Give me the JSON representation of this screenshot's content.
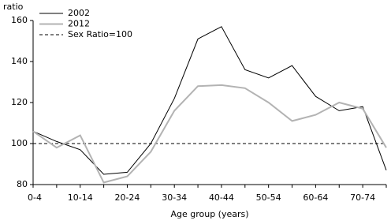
{
  "chart_data": {
    "type": "line",
    "y_axis_label": "ratio",
    "x_axis_label": "Age group (years)",
    "categories": [
      "0-4",
      null,
      "10-14",
      null,
      "20-24",
      null,
      "30-34",
      null,
      "40-44",
      null,
      "50-54",
      null,
      "60-64",
      null,
      "70-74",
      null
    ],
    "series": [
      {
        "name": "2002",
        "color": "#000000",
        "width": 1,
        "values": [
          106,
          101,
          97,
          85,
          86,
          100,
          122,
          151,
          157,
          136,
          132,
          138,
          123,
          116,
          118,
          87
        ]
      },
      {
        "name": "2012",
        "color": "#b3b3b3",
        "width": 2,
        "values": [
          106,
          98,
          104,
          81,
          84,
          96,
          116,
          128,
          128.5,
          127,
          120,
          111,
          114,
          120,
          117,
          98
        ]
      }
    ],
    "reference_line": {
      "name": "Sex Ratio=100",
      "value": 100,
      "color": "#000000"
    },
    "ylim": [
      80,
      160
    ],
    "yticks": [
      80,
      100,
      120,
      140,
      160
    ],
    "legend": "top-left"
  }
}
